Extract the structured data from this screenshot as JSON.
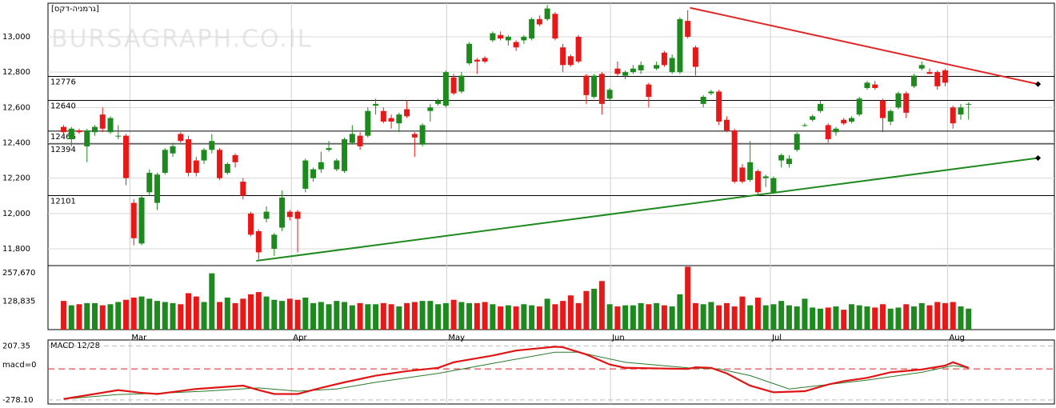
{
  "chart_data": [
    {
      "type": "candlestick",
      "title": "[גרמניה-דקס]",
      "watermark": "BURSAGRAPH.CO.IL",
      "up_color": "#1c8a1c",
      "down_color": "#e81818",
      "xlim": [
        -2,
        127
      ],
      "xticks": [
        {
          "value": 8.5,
          "label": "Mar"
        },
        {
          "value": 29.2,
          "label": "Apr"
        },
        {
          "value": 49.1,
          "label": "May"
        },
        {
          "value": 70.1,
          "label": "Jun"
        },
        {
          "value": 90.6,
          "label": "Jul"
        },
        {
          "value": 113.3,
          "label": "Aug"
        }
      ],
      "ylim": [
        11705,
        13190
      ],
      "yticks": [
        {
          "value": 13000,
          "label": "13,000"
        },
        {
          "value": 12800,
          "label": "12,800"
        },
        {
          "value": 12600,
          "label": "12,600"
        },
        {
          "value": 12400,
          "label": "12,400"
        },
        {
          "value": 12200,
          "label": "12,200"
        },
        {
          "value": 12000,
          "label": "12,000"
        },
        {
          "value": 11800,
          "label": "11,800"
        }
      ],
      "grid": true,
      "levels": [
        12776,
        12640,
        12466,
        12394,
        12101
      ],
      "trendlines": [
        {
          "color": "#e02424",
          "x": [
            80.3,
            124.9
          ],
          "values": [
            13164,
            12732
          ]
        },
        {
          "color": "#1f8a1f",
          "x": [
            24.7,
            124.9
          ],
          "values": [
            11732,
            12314
          ]
        }
      ],
      "candles": [
        [
          12490,
          12500,
          12440,
          12460
        ],
        [
          12420,
          12490,
          12380,
          12480
        ],
        [
          12470,
          12480,
          12450,
          12460
        ],
        [
          12380,
          12480,
          12290,
          12470
        ],
        [
          12460,
          12500,
          12440,
          12490
        ],
        [
          12560,
          12600,
          12460,
          12480
        ],
        [
          12460,
          12550,
          12450,
          12540
        ],
        [
          12440,
          12500,
          12420,
          12440
        ],
        [
          12440,
          12450,
          12160,
          12200
        ],
        [
          12060,
          12080,
          11820,
          11860
        ],
        [
          11830,
          12100,
          11820,
          12090
        ],
        [
          12120,
          12250,
          12100,
          12230
        ],
        [
          12060,
          12230,
          12020,
          12220
        ],
        [
          12230,
          12370,
          12220,
          12360
        ],
        [
          12340,
          12400,
          12320,
          12380
        ],
        [
          12450,
          12460,
          12400,
          12410
        ],
        [
          12420,
          12440,
          12210,
          12230
        ],
        [
          12300,
          12320,
          12210,
          12230
        ],
        [
          12300,
          12370,
          12280,
          12360
        ],
        [
          12360,
          12450,
          12340,
          12410
        ],
        [
          12360,
          12370,
          12190,
          12200
        ],
        [
          12230,
          12290,
          12220,
          12280
        ],
        [
          12330,
          12340,
          12260,
          12290
        ],
        [
          12180,
          12200,
          12080,
          12100
        ],
        [
          12000,
          12010,
          11870,
          11880
        ],
        [
          11900,
          11910,
          11740,
          11780
        ],
        [
          11970,
          12040,
          11950,
          12010
        ],
        [
          11800,
          11890,
          11760,
          11880
        ],
        [
          11920,
          12130,
          11900,
          12090
        ],
        [
          12010,
          12020,
          11960,
          11980
        ],
        [
          12010,
          12020,
          11780,
          11970
        ],
        [
          12140,
          12310,
          12120,
          12300
        ],
        [
          12200,
          12260,
          12180,
          12250
        ],
        [
          12250,
          12350,
          12230,
          12290
        ],
        [
          12360,
          12410,
          12350,
          12370
        ],
        [
          12250,
          12310,
          12240,
          12300
        ],
        [
          12240,
          12430,
          12230,
          12420
        ],
        [
          12400,
          12500,
          12390,
          12450
        ],
        [
          12440,
          12460,
          12360,
          12380
        ],
        [
          12440,
          12600,
          12430,
          12580
        ],
        [
          12610,
          12650,
          12560,
          12620
        ],
        [
          12580,
          12600,
          12510,
          12520
        ],
        [
          12540,
          12560,
          12480,
          12520
        ],
        [
          12510,
          12570,
          12460,
          12560
        ],
        [
          12590,
          12640,
          12540,
          12550
        ],
        [
          12450,
          12460,
          12320,
          12430
        ],
        [
          12390,
          12510,
          12380,
          12500
        ],
        [
          12580,
          12620,
          12520,
          12600
        ],
        [
          12620,
          12650,
          12610,
          12640
        ],
        [
          12610,
          12810,
          12600,
          12800
        ],
        [
          12770,
          12790,
          12670,
          12680
        ],
        [
          12690,
          12800,
          12680,
          12780
        ],
        [
          12850,
          12970,
          12840,
          12960
        ],
        [
          12870,
          12880,
          12790,
          12860
        ],
        [
          12880,
          12890,
          12850,
          12860
        ],
        [
          12980,
          13030,
          12970,
          13020
        ],
        [
          13010,
          13030,
          12980,
          12990
        ],
        [
          12980,
          13010,
          12950,
          13000
        ],
        [
          12970,
          12980,
          12920,
          12940
        ],
        [
          12980,
          13010,
          12960,
          13000
        ],
        [
          12990,
          13110,
          12980,
          13100
        ],
        [
          13100,
          13120,
          13060,
          13070
        ],
        [
          13100,
          13180,
          13090,
          13160
        ],
        [
          13130,
          13140,
          12980,
          12990
        ],
        [
          12940,
          12960,
          12800,
          12840
        ],
        [
          12890,
          12900,
          12830,
          12840
        ],
        [
          13000,
          13010,
          12850,
          12860
        ],
        [
          12780,
          12790,
          12620,
          12670
        ],
        [
          12660,
          12790,
          12650,
          12780
        ],
        [
          12790,
          12800,
          12560,
          12620
        ],
        [
          12650,
          12710,
          12640,
          12700
        ],
        [
          12820,
          12860,
          12780,
          12790
        ],
        [
          12780,
          12810,
          12760,
          12800
        ],
        [
          12800,
          12840,
          12790,
          12820
        ],
        [
          12810,
          12860,
          12790,
          12840
        ],
        [
          12730,
          12740,
          12600,
          12660
        ],
        [
          12820,
          12860,
          12810,
          12840
        ],
        [
          12910,
          12920,
          12830,
          12840
        ],
        [
          12800,
          12900,
          12790,
          12880
        ],
        [
          12800,
          13110,
          12790,
          13100
        ],
        [
          13090,
          13150,
          12990,
          13000
        ],
        [
          12940,
          12950,
          12780,
          12830
        ],
        [
          12620,
          12670,
          12600,
          12660
        ],
        [
          12680,
          12700,
          12670,
          12690
        ],
        [
          12690,
          12700,
          12500,
          12520
        ],
        [
          12530,
          12550,
          12460,
          12470
        ],
        [
          12470,
          12480,
          12170,
          12180
        ],
        [
          12260,
          12280,
          12170,
          12180
        ],
        [
          12190,
          12410,
          12180,
          12290
        ],
        [
          12240,
          12250,
          12100,
          12120
        ],
        [
          12200,
          12220,
          12150,
          12210
        ],
        [
          12120,
          12210,
          12110,
          12200
        ],
        [
          12300,
          12340,
          12260,
          12330
        ],
        [
          12280,
          12330,
          12260,
          12310
        ],
        [
          12360,
          12460,
          12350,
          12450
        ],
        [
          12500,
          12510,
          12490,
          12500
        ],
        [
          12530,
          12560,
          12520,
          12550
        ],
        [
          12580,
          12640,
          12570,
          12620
        ],
        [
          12500,
          12510,
          12400,
          12420
        ],
        [
          12460,
          12490,
          12440,
          12480
        ],
        [
          12530,
          12540,
          12500,
          12510
        ],
        [
          12520,
          12550,
          12510,
          12540
        ],
        [
          12560,
          12660,
          12550,
          12650
        ],
        [
          12710,
          12750,
          12700,
          12740
        ],
        [
          12730,
          12750,
          12700,
          12710
        ],
        [
          12640,
          12650,
          12460,
          12540
        ],
        [
          12520,
          12590,
          12500,
          12580
        ],
        [
          12600,
          12690,
          12590,
          12680
        ],
        [
          12680,
          12690,
          12540,
          12570
        ],
        [
          12720,
          12790,
          12710,
          12780
        ],
        [
          12820,
          12860,
          12810,
          12840
        ],
        [
          12800,
          12820,
          12790,
          12790
        ],
        [
          12800,
          12810,
          12700,
          12720
        ],
        [
          12810,
          12820,
          12720,
          12740
        ],
        [
          12600,
          12610,
          12480,
          12510
        ],
        [
          12560,
          12620,
          12530,
          12600
        ],
        [
          12620,
          12630,
          12530,
          12620
        ]
      ]
    },
    {
      "type": "bar",
      "ylim": [
        0,
        290000
      ],
      "yticks": [
        {
          "value": 257670,
          "label": "257,670"
        },
        {
          "value": 128835,
          "label": "128,835"
        }
      ],
      "values": [
        130000,
        110000,
        115000,
        120000,
        120000,
        110000,
        115000,
        125000,
        135000,
        145000,
        150000,
        140000,
        130000,
        125000,
        120000,
        115000,
        165000,
        150000,
        125000,
        255000,
        125000,
        145000,
        120000,
        140000,
        160000,
        170000,
        150000,
        135000,
        130000,
        140000,
        135000,
        145000,
        120000,
        125000,
        115000,
        130000,
        125000,
        110000,
        120000,
        115000,
        115000,
        120000,
        115000,
        105000,
        120000,
        125000,
        130000,
        130000,
        115000,
        120000,
        135000,
        125000,
        120000,
        120000,
        125000,
        115000,
        105000,
        110000,
        105000,
        115000,
        110000,
        105000,
        140000,
        115000,
        130000,
        155000,
        120000,
        175000,
        185000,
        220000,
        115000,
        105000,
        110000,
        110000,
        120000,
        115000,
        120000,
        110000,
        105000,
        160000,
        285000,
        120000,
        115000,
        125000,
        110000,
        120000,
        105000,
        150000,
        110000,
        145000,
        110000,
        115000,
        130000,
        110000,
        105000,
        140000,
        100000,
        95000,
        100000,
        105000,
        90000,
        115000,
        110000,
        105000,
        100000,
        115000,
        95000,
        100000,
        115000,
        105000,
        120000,
        110000,
        125000,
        120000,
        125000,
        105000,
        95000
      ]
    },
    {
      "type": "line",
      "title": "MACD 12/28",
      "ylim": [
        -315,
        260
      ],
      "yticks": [
        207.35,
        {
          "value": -278.1,
          "label": "-278.10"
        }
      ],
      "zero_line": {
        "value": 0,
        "label": "macd=0",
        "color": "#e02020"
      },
      "series": [
        {
          "color": "#e01414",
          "x": [
            0,
            7,
            10,
            12,
            17,
            23,
            25,
            27,
            30,
            33,
            36,
            40,
            44,
            48,
            50,
            55,
            58,
            63,
            64,
            67,
            70,
            72,
            80,
            81,
            83,
            85,
            88,
            91,
            95,
            98,
            100,
            103,
            106,
            110,
            113,
            114,
            116
          ],
          "values": [
            -270,
            -190,
            -215,
            -225,
            -180,
            -150,
            -190,
            -225,
            -225,
            -170,
            -120,
            -60,
            -20,
            10,
            60,
            120,
            165,
            200,
            195,
            130,
            40,
            10,
            0,
            15,
            10,
            -40,
            -150,
            -210,
            -200,
            -140,
            -110,
            -80,
            -30,
            -5,
            30,
            60,
            10
          ]
        },
        {
          "color": "#2a7a2a",
          "x": [
            0,
            7,
            12,
            18,
            25,
            30,
            35,
            40,
            48,
            55,
            63,
            66,
            72,
            80,
            84,
            88,
            93,
            98,
            103,
            110,
            114,
            116
          ],
          "values": [
            -270,
            -230,
            -220,
            -200,
            -170,
            -200,
            -180,
            -120,
            -40,
            50,
            150,
            150,
            60,
            10,
            0,
            -60,
            -180,
            -140,
            -100,
            -30,
            30,
            10
          ]
        }
      ]
    }
  ]
}
